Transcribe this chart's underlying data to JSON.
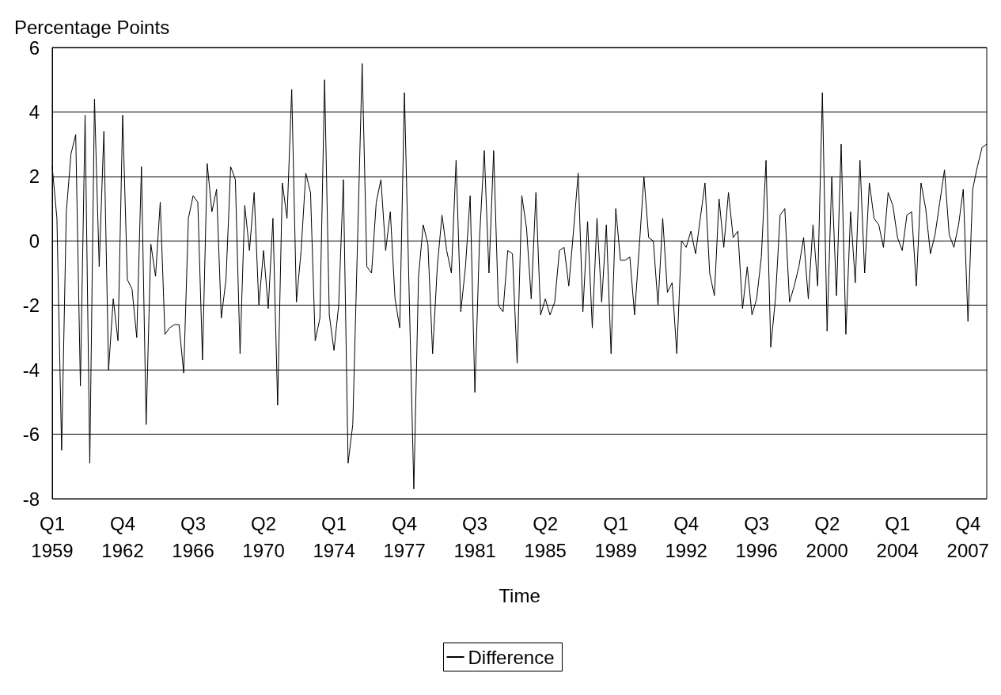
{
  "chart_data": {
    "type": "line",
    "xlabel": "Time",
    "ylabel": "Percentage Points",
    "categories": [
      "Q1\n1959",
      null,
      null,
      null,
      null,
      null,
      null,
      null,
      null,
      null,
      null,
      null,
      null,
      null,
      null,
      "Q4\n1962",
      null,
      null,
      null,
      null,
      null,
      null,
      null,
      null,
      null,
      null,
      null,
      null,
      null,
      null,
      "Q3\n1966",
      null,
      null,
      null,
      null,
      null,
      null,
      null,
      null,
      null,
      null,
      null,
      null,
      null,
      null,
      "Q2\n1970",
      null,
      null,
      null,
      null,
      null,
      null,
      null,
      null,
      null,
      null,
      null,
      null,
      null,
      null,
      "Q1\n1974",
      null,
      null,
      null,
      null,
      null,
      null,
      null,
      null,
      null,
      null,
      null,
      null,
      null,
      null,
      "Q4\n1977",
      null,
      null,
      null,
      null,
      null,
      null,
      null,
      null,
      null,
      null,
      null,
      null,
      null,
      null,
      "Q3\n1981",
      null,
      null,
      null,
      null,
      null,
      null,
      null,
      null,
      null,
      null,
      null,
      null,
      null,
      null,
      "Q2\n1985",
      null,
      null,
      null,
      null,
      null,
      null,
      null,
      null,
      null,
      null,
      null,
      null,
      null,
      null,
      "Q1\n1989",
      null,
      null,
      null,
      null,
      null,
      null,
      null,
      null,
      null,
      null,
      null,
      null,
      null,
      null,
      "Q4\n1992",
      null,
      null,
      null,
      null,
      null,
      null,
      null,
      null,
      null,
      null,
      null,
      null,
      null,
      null,
      "Q3\n1996",
      null,
      null,
      null,
      null,
      null,
      null,
      null,
      null,
      null,
      null,
      null,
      null,
      null,
      null,
      "Q2\n2000",
      null,
      null,
      null,
      null,
      null,
      null,
      null,
      null,
      null,
      null,
      null,
      null,
      null,
      null,
      "Q1\n2004",
      null,
      null,
      null,
      null,
      null,
      null,
      null,
      null,
      null,
      null,
      null,
      null,
      null,
      null,
      "Q4\n2007",
      null,
      null,
      null,
      null
    ],
    "series": [
      {
        "name": "Difference",
        "color": "#000000",
        "values": [
          2.3,
          0.7,
          -6.5,
          0.9,
          2.7,
          3.3,
          -4.5,
          3.9,
          -6.9,
          4.4,
          -0.8,
          3.4,
          -4.0,
          -1.8,
          -3.1,
          3.9,
          -1.2,
          -1.5,
          -3.0,
          2.3,
          -5.7,
          -0.1,
          -1.1,
          1.2,
          -2.9,
          -2.7,
          -2.6,
          -2.6,
          -4.1,
          0.7,
          1.4,
          1.2,
          -3.7,
          2.4,
          0.9,
          1.6,
          -2.4,
          -1.2,
          2.3,
          1.9,
          -3.5,
          1.1,
          -0.3,
          1.5,
          -2.0,
          -0.3,
          -2.1,
          0.7,
          -5.1,
          1.8,
          0.7,
          4.7,
          -1.9,
          -0.3,
          2.1,
          1.5,
          -3.1,
          -2.4,
          5.0,
          -2.3,
          -3.4,
          -2.0,
          1.9,
          -6.9,
          -5.7,
          -0.1,
          5.5,
          -0.8,
          -1.0,
          1.2,
          1.9,
          -0.3,
          0.9,
          -1.8,
          -2.7,
          4.6,
          -1.6,
          -7.7,
          -1.1,
          0.5,
          -0.1,
          -3.5,
          -0.8,
          0.8,
          -0.3,
          -1.0,
          2.5,
          -2.2,
          -0.8,
          1.4,
          -4.7,
          0.1,
          2.8,
          -1.0,
          2.8,
          -2.0,
          -2.2,
          -0.3,
          -0.4,
          -3.8,
          1.4,
          0.4,
          -1.8,
          1.5,
          -2.3,
          -1.8,
          -2.3,
          -1.9,
          -0.3,
          -0.2,
          -1.4,
          0.3,
          2.1,
          -2.2,
          0.6,
          -2.7,
          0.7,
          -1.9,
          0.5,
          -3.5,
          1.0,
          -0.6,
          -0.6,
          -0.5,
          -2.3,
          -0.2,
          2.0,
          0.1,
          0.0,
          -2.0,
          0.7,
          -1.6,
          -1.3,
          -3.5,
          0.0,
          -0.2,
          0.3,
          -0.4,
          0.7,
          1.8,
          -1.0,
          -1.7,
          1.3,
          -0.2,
          1.5,
          0.1,
          0.3,
          -2.1,
          -0.8,
          -2.3,
          -1.8,
          -0.5,
          2.5,
          -3.3,
          -1.8,
          0.8,
          1.0,
          -1.9,
          -1.4,
          -0.8,
          0.1,
          -1.8,
          0.5,
          -1.4,
          4.6,
          -2.8,
          2.0,
          -1.7,
          3.0,
          -2.9,
          0.9,
          -1.3,
          2.5,
          -1.0,
          1.8,
          0.7,
          0.5,
          -0.2,
          1.5,
          1.1,
          0.1,
          -0.3,
          0.8,
          0.9,
          -1.4,
          1.8,
          1.0,
          -0.4,
          0.2,
          1.2,
          2.2,
          0.2,
          -0.2,
          0.5,
          1.6,
          -2.5,
          1.6,
          2.3,
          2.9,
          3.0
        ]
      }
    ],
    "ylim": [
      -8,
      6
    ],
    "yticks": [
      -8,
      -6,
      -4,
      -2,
      0,
      2,
      4,
      6
    ],
    "grid": "y",
    "legend": "bottom",
    "marker": "none",
    "line_style": "solid"
  }
}
